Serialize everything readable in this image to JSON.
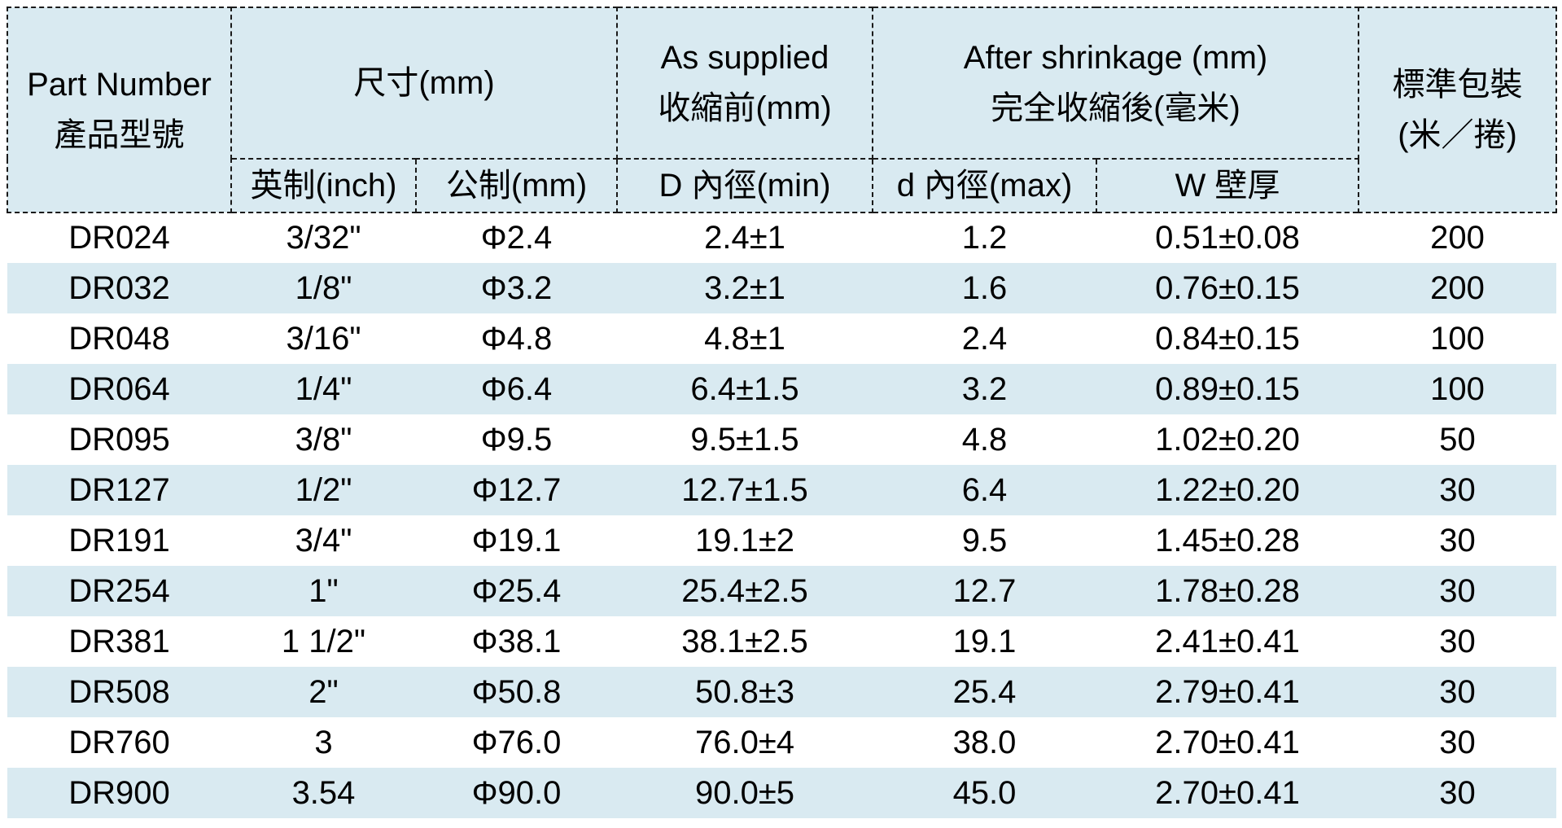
{
  "colors": {
    "header_bg": "#d9eaf1",
    "stripe_bg": "#d9eaf1",
    "border": "#1a1a1a",
    "text": "#000000"
  },
  "header": {
    "part_number_en": "Part Number",
    "part_number_zh": "產品型號",
    "size": "尺寸(mm)",
    "as_supplied_en": "As supplied",
    "as_supplied_zh": "收縮前(mm)",
    "after_shrinkage_en": "After shrinkage (mm)",
    "after_shrinkage_zh": "完全收縮後(毫米)",
    "packaging_line1": "標準包裝",
    "packaging_line2": "(米／捲)",
    "sub_inch": "英制(inch)",
    "sub_metric": "公制(mm)",
    "sub_d_min": "D 內徑(min)",
    "sub_d_max": "d 內徑(max)",
    "sub_wall": "W 壁厚"
  },
  "columns": [
    "part-number",
    "inch-size",
    "metric-size",
    "d-inner-min",
    "d-inner-max",
    "wall-thickness",
    "packaging"
  ],
  "rows": [
    [
      "DR024",
      "3/32\"",
      "Φ2.4",
      "2.4±1",
      "1.2",
      "0.51±0.08",
      "200"
    ],
    [
      "DR032",
      "1/8\"",
      "Φ3.2",
      "3.2±1",
      "1.6",
      "0.76±0.15",
      "200"
    ],
    [
      "DR048",
      "3/16\"",
      "Φ4.8",
      "4.8±1",
      "2.4",
      "0.84±0.15",
      "100"
    ],
    [
      "DR064",
      "1/4\"",
      "Φ6.4",
      "6.4±1.5",
      "3.2",
      "0.89±0.15",
      "100"
    ],
    [
      "DR095",
      "3/8\"",
      "Φ9.5",
      "9.5±1.5",
      "4.8",
      "1.02±0.20",
      "50"
    ],
    [
      "DR127",
      "1/2\"",
      "Φ12.7",
      "12.7±1.5",
      "6.4",
      "1.22±0.20",
      "30"
    ],
    [
      "DR191",
      "3/4\"",
      "Φ19.1",
      "19.1±2",
      "9.5",
      "1.45±0.28",
      "30"
    ],
    [
      "DR254",
      "1\"",
      "Φ25.4",
      "25.4±2.5",
      "12.7",
      "1.78±0.28",
      "30"
    ],
    [
      "DR381",
      "1 1/2\"",
      "Φ38.1",
      "38.1±2.5",
      "19.1",
      "2.41±0.41",
      "30"
    ],
    [
      "DR508",
      "2\"",
      "Φ50.8",
      "50.8±3",
      "25.4",
      "2.79±0.41",
      "30"
    ],
    [
      "DR760",
      "3",
      "Φ76.0",
      "76.0±4",
      "38.0",
      "2.70±0.41",
      "30"
    ],
    [
      "DR900",
      "3.54",
      "Φ90.0",
      "90.0±5",
      "45.0",
      "2.70±0.41",
      "30"
    ]
  ]
}
